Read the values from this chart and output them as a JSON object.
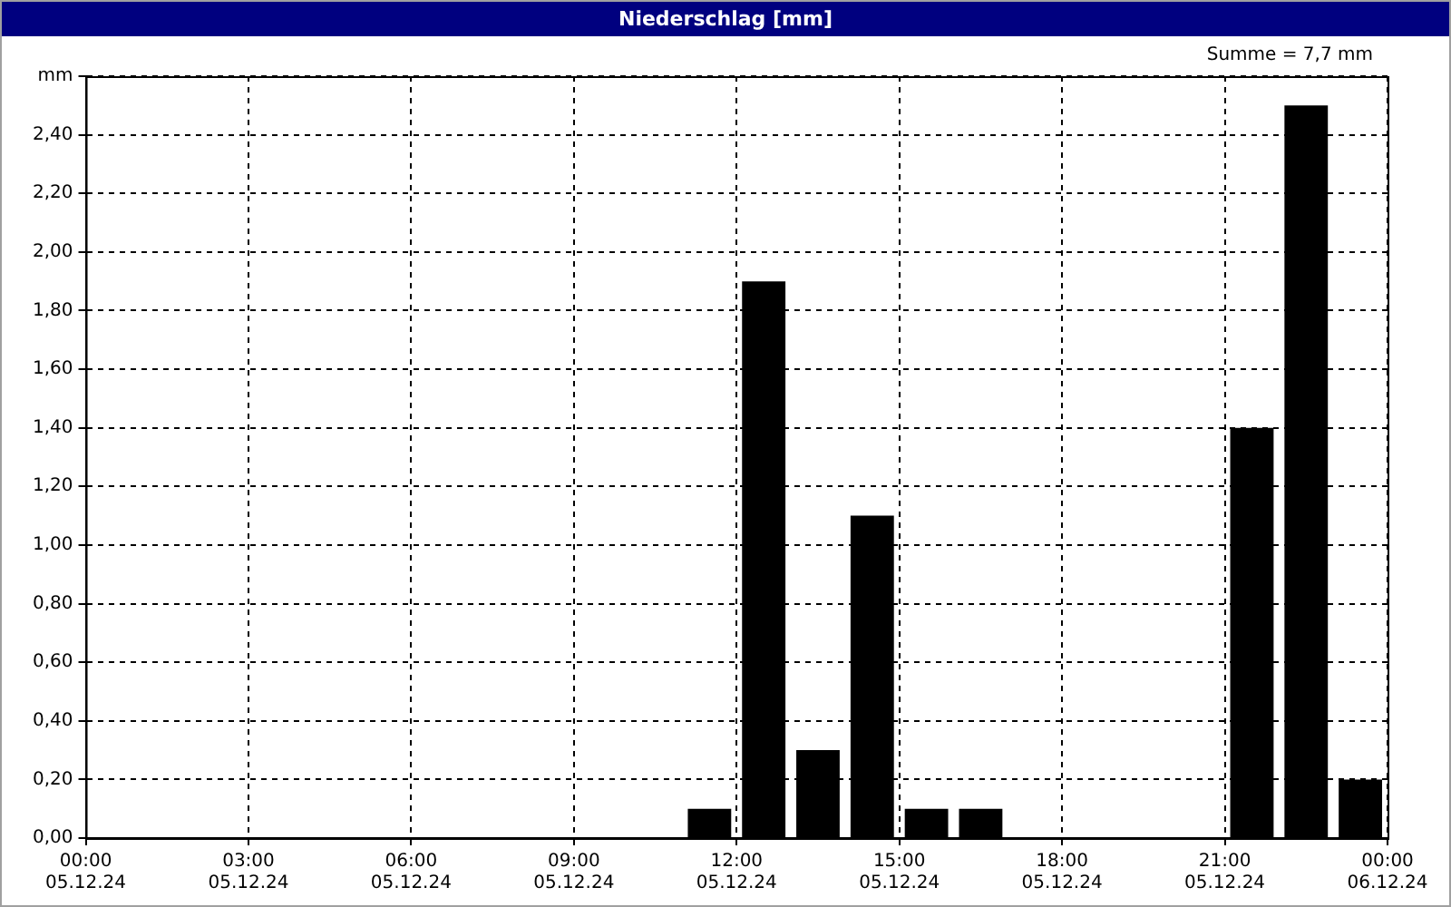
{
  "chart_data": {
    "type": "bar",
    "title": "Niederschlag [mm]",
    "annotations": [
      "Summe = 7,7 mm"
    ],
    "x": [
      "--12-05T11:30",
      "--12-05T12:30",
      "--12-05T13:30",
      "--12-05T14:30",
      "--12-05T15:30",
      "--12-05T16:30",
      "--12-05T21:30",
      "--12-05T22:30",
      "--12-05T23:30"
    ],
    "values": [
      0.1,
      1.9,
      0.3,
      1.1,
      0.1,
      0.1,
      1.4,
      2.5,
      0.2
    ],
    "color": "#000000",
    "xlim": [
      "--12-05T00:00",
      "--12-06T00:00"
    ],
    "xticks": [
      {
        "value": "--12-05T00:00",
        "label": "00:00\n05.12.24"
      },
      {
        "value": "--12-05T03:00",
        "label": "03:00\n05.12.24"
      },
      {
        "value": "--12-05T06:00",
        "label": "06:00\n05.12.24"
      },
      {
        "value": "--12-05T09:00",
        "label": "09:00\n05.12.24"
      },
      {
        "value": "--12-05T12:00",
        "label": "12:00\n05.12.24"
      },
      {
        "value": "--12-05T15:00",
        "label": "15:00\n05.12.24"
      },
      {
        "value": "--12-05T18:00",
        "label": "18:00\n05.12.24"
      },
      {
        "value": "--12-05T21:00",
        "label": "21:00\n05.12.24"
      },
      {
        "value": "--12-06T00:00",
        "label": "00:00\n06.12.24"
      }
    ],
    "ylim": [
      0,
      2.6
    ],
    "yticks": [
      {
        "value": 0,
        "label": "0,00"
      },
      {
        "value": 0.2,
        "label": "0,20"
      },
      {
        "value": 0.4,
        "label": "0,40"
      },
      {
        "value": 0.6,
        "label": "0,60"
      },
      {
        "value": 0.8,
        "label": "0,80"
      },
      {
        "value": 1,
        "label": "1,00"
      },
      {
        "value": 1.2,
        "label": "1,20"
      },
      {
        "value": 1.4,
        "label": "1,40"
      },
      {
        "value": 1.6,
        "label": "1,60"
      },
      {
        "value": 1.8,
        "label": "1,80"
      },
      {
        "value": 2,
        "label": "2,00"
      },
      {
        "value": 2.2,
        "label": "2,20"
      },
      {
        "value": 2.4,
        "label": "2,40"
      },
      {
        "value": 2.6,
        "label": "mm"
      }
    ],
    "grid": true,
    "legend": false
  }
}
